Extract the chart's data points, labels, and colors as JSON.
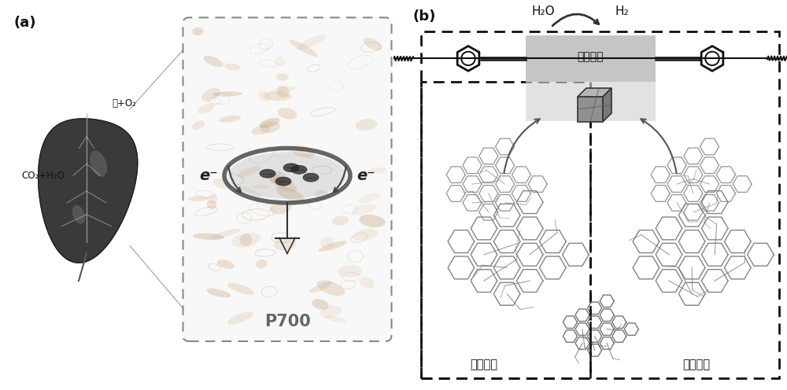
{
  "panel_a_label": "(a)",
  "panel_b_label": "(b)",
  "leaf_text1": "糖+O₂",
  "leaf_text2": "CO₂+H₂O",
  "p700_label": "P700",
  "electron_label": "e⁻",
  "h2o_label": "H₂O",
  "h2_label": "H₂",
  "acceptor_label": "电子受体",
  "donor_label1": "电子供体",
  "donor_label2": "电子供体",
  "bg_color": "#ffffff",
  "text_color": "#000000",
  "dashed_color": "#222222",
  "gray_protein": "#c8b090",
  "acceptor_box_color": "#c0c0c0"
}
